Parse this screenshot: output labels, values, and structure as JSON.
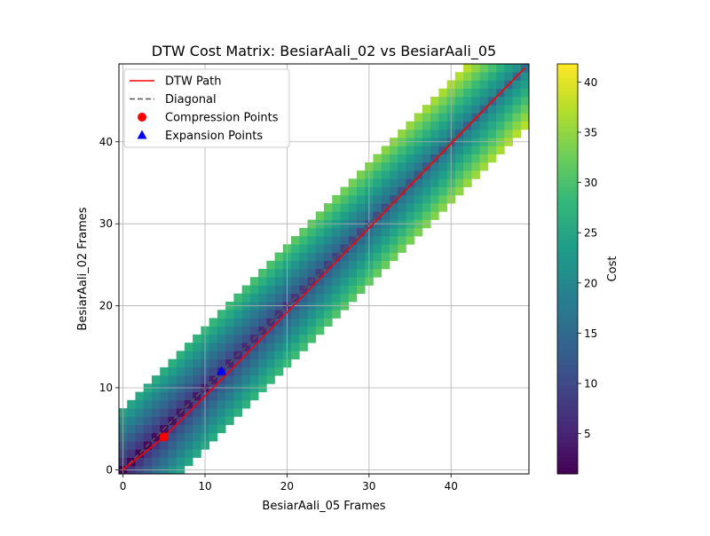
{
  "chart_data": {
    "type": "heatmap",
    "title": "DTW Cost Matrix: BesiarAali_02 vs BesiarAali_05",
    "xlabel": "BesiarAali_05 Frames",
    "ylabel": "BesiarAali_02 Frames",
    "xlim": [
      -0.5,
      49.5
    ],
    "ylim": [
      -0.5,
      49.5
    ],
    "x_ticks": [
      0,
      10,
      20,
      30,
      40
    ],
    "y_ticks": [
      0,
      10,
      20,
      30,
      40
    ],
    "grid": true,
    "grid_color": "#b0b0b0",
    "colorbar": {
      "label": "Cost",
      "colormap": "viridis",
      "min": 1,
      "max": 41.8,
      "ticks": [
        5,
        10,
        15,
        20,
        25,
        30,
        35,
        40
      ]
    },
    "matrix": {
      "rows": 50,
      "cols": 50,
      "band_half_width": 7,
      "cost_model": "cost grows with distance from the diagonal and with frame index; cells outside the band are masked (blank)"
    },
    "series": [
      {
        "name": "DTW Path",
        "type": "line",
        "color": "#ff0000",
        "x": [
          0,
          5,
          12,
          49
        ],
        "y": [
          0,
          4,
          11,
          49
        ]
      },
      {
        "name": "Diagonal",
        "type": "line",
        "style": "dashed",
        "color": "#555555",
        "x": [
          0,
          49
        ],
        "y": [
          0,
          49
        ]
      },
      {
        "name": "Compression Points",
        "type": "scatter",
        "marker": "circle",
        "color": "#ff0000",
        "x": [
          5
        ],
        "y": [
          4
        ]
      },
      {
        "name": "Expansion Points",
        "type": "scatter",
        "marker": "triangle",
        "color": "#0000ff",
        "x": [
          12
        ],
        "y": [
          12
        ]
      }
    ],
    "legend": {
      "placement": "top-left",
      "entries": [
        "DTW Path",
        "Diagonal",
        "Compression Points",
        "Expansion Points"
      ]
    }
  }
}
